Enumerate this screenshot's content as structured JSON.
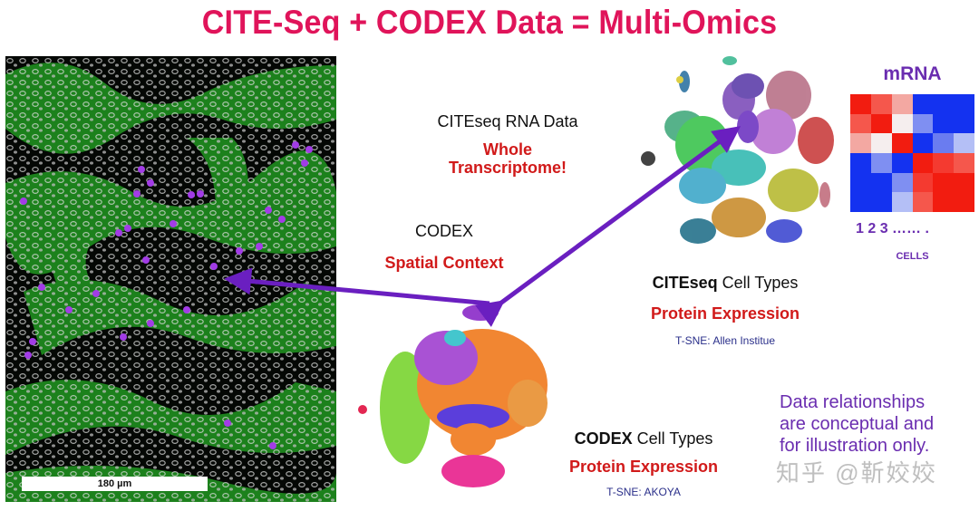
{
  "title": "CITE-Seq + CODEX Data = Multi-Omics",
  "tissue_image": {
    "description": "CODEX multiplex fluorescence tissue image",
    "channels": {
      "membrane": "#2fb82f",
      "nuclei": "#e8e8e8",
      "highlight_cells": "#9b30e0"
    },
    "scalebar_label": "180 µm"
  },
  "citeseq_rna": {
    "heading": "CITEseq RNA Data",
    "emphasis_line1": "Whole",
    "emphasis_line2": "Transcriptome!"
  },
  "codex_spatial": {
    "heading": "CODEX",
    "emphasis": "Spatial Context"
  },
  "citeseq_tsne": {
    "label_bold": "CITEseq",
    "label_rest": " Cell Types",
    "emphasis": "Protein Expression",
    "source": "T-SNE: Allen Institue"
  },
  "codex_tsne": {
    "label_bold": "CODEX",
    "label_rest": " Cell Types",
    "emphasis": "Protein Expression",
    "source": "T-SNE: AKOYA"
  },
  "heatmap": {
    "title": "mRNA",
    "x_ticks": "1  2  3  …… .",
    "x_label": "CELLS",
    "colors": [
      [
        "#f21c10",
        "#f5574c",
        "#f3a8a2",
        "#1432f0",
        "#1432f0",
        "#1432f0"
      ],
      [
        "#f5574c",
        "#f21c10",
        "#f5eeee",
        "#7f8ff2",
        "#1432f0",
        "#1432f0"
      ],
      [
        "#f3a8a2",
        "#f5eeee",
        "#f21c10",
        "#1432f0",
        "#6a7cf0",
        "#b4bff6"
      ],
      [
        "#1432f0",
        "#7f8ff2",
        "#1432f0",
        "#f21c10",
        "#f43a30",
        "#f5574c"
      ],
      [
        "#1432f0",
        "#1432f0",
        "#7f8ff2",
        "#f43a30",
        "#f21c10",
        "#f21c10"
      ],
      [
        "#1432f0",
        "#1432f0",
        "#b4bff6",
        "#f5574c",
        "#f21c10",
        "#f21c10"
      ]
    ]
  },
  "disclaimer": {
    "line1": "Data relationships",
    "line2": "are conceptual and",
    "line3": "for illustration only."
  },
  "watermark": "知乎 @靳姣姣",
  "colors": {
    "title": "#e0145a",
    "emphasis_red": "#d11a1a",
    "arrow_purple": "#6a1fc0",
    "note_purple": "#6a2db0"
  }
}
